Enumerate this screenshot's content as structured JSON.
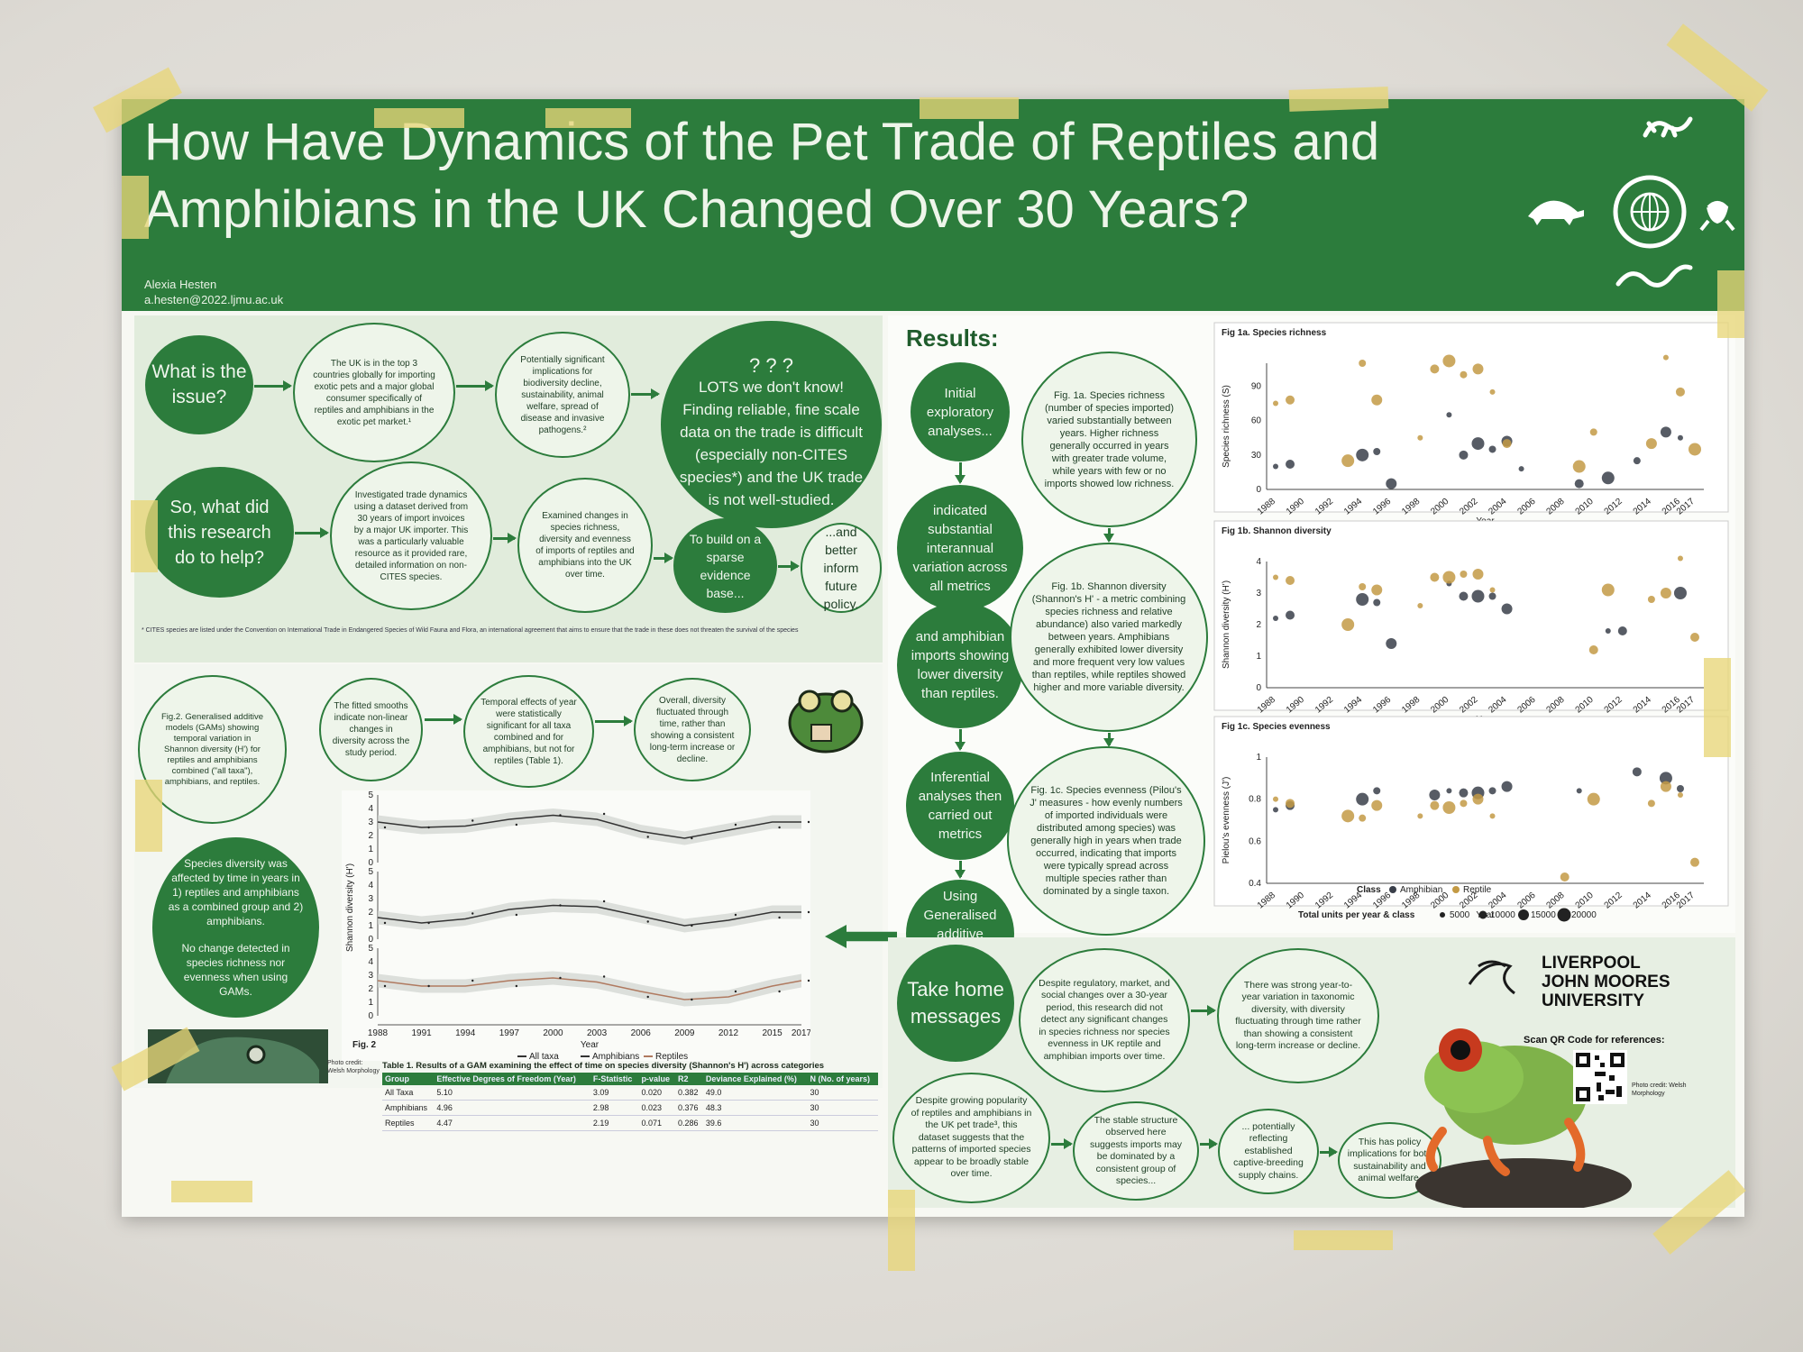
{
  "poster": {
    "title": "How Have Dynamics of the Pet Trade of Reptiles and Amphibians in the UK Changed Over 30 Years?",
    "author": "Alexia Hesten",
    "email": "a.hesten@2022.ljmu.ac.uk"
  },
  "issue": {
    "q1": "What is the issue?",
    "b1": "The UK is in the top 3 countries globally for importing exotic pets and a major global consumer specifically of reptiles and amphibians in the exotic pet market.¹",
    "b2": "Potentially significant implications for biodiversity decline, sustainability, animal welfare, spread of disease and invasive pathogens.²",
    "big": "LOTS we don't know! Finding reliable, fine scale data on the trade is difficult (especially non-CITES species*) and the UK trade is not well-studied.",
    "q2": "So, what did this research do to help?",
    "c1": "Investigated trade dynamics using a dataset derived from 30 years of import invoices by a major UK importer. This was a particularly valuable resource as it provided rare, detailed information on non-CITES species.",
    "c2": "Examined changes in species richness, diversity and evenness of imports of reptiles and amphibians into the UK over time.",
    "c3": "To build on a sparse evidence base...",
    "c4": "...and better inform future policy.",
    "footnote": "* CITES species are listed under the Convention on International Trade in Endangered Species of Wild Fauna and Flora, an international agreement that aims to ensure that the trade in these does not threaten the survival of the species"
  },
  "gam_section": {
    "g1": "Fig.2. Generalised additive models (GAMs) showing temporal variation in Shannon diversity (H') for reptiles and amphibians combined (\"all taxa\"), amphibians, and reptiles.",
    "g2": "The fitted smooths indicate non-linear changes in diversity across the study period.",
    "g3": "Temporal effects of year were statistically significant for all taxa combined and for amphibians, but not for reptiles (Table 1).",
    "g4": "Overall, diversity fluctuated through time, rather than showing a consistent long-term increase or decline.",
    "summary1": "Species diversity was affected by time in years in 1) reptiles and amphibians as a combined group and 2) amphibians.",
    "summary2": "No change detected in species richness nor evenness when using GAMs.",
    "photo_credit": "Photo credit: Welsh Morphology",
    "fig_label": "Fig. 2",
    "legend_all": "All taxa",
    "legend_amph": "Amphibians",
    "legend_rept": "Reptiles"
  },
  "table1": {
    "caption": "Table 1. Results of a GAM examining the effect of time on species diversity (Shannon's H') across categories",
    "headers": [
      "Group",
      "Effective Degrees of Freedom (Year)",
      "F-Statistic",
      "p-value",
      "R2",
      "Deviance Explained (%)",
      "N (No. of years)"
    ],
    "rows": [
      [
        "All Taxa",
        "5.10",
        "3.09",
        "0.020",
        "0.382",
        "49.0",
        "30"
      ],
      [
        "Amphibians",
        "4.96",
        "2.98",
        "0.023",
        "0.376",
        "48.3",
        "30"
      ],
      [
        "Reptiles",
        "4.47",
        "2.19",
        "0.071",
        "0.286",
        "39.6",
        "30"
      ]
    ]
  },
  "results": {
    "heading": "Results:",
    "f1": "Initial exploratory analyses...",
    "f2": "indicated substantial interannual variation across all metrics",
    "f3": "and amphibian imports showing lower diversity than reptiles.",
    "f4": "Inferential analyses then carried out metrics",
    "f5": "Using Generalised additive models (GAMs)",
    "d1": "Fig. 1a. Species richness (number of species imported) varied substantially between years. Higher richness generally occurred in years with greater trade volume, while years with few or no imports showed low richness.",
    "d2": "Fig. 1b. Shannon diversity (Shannon's H' - a metric combining species richness and relative abundance) also varied markedly between years. Amphibians generally exhibited lower diversity and more frequent very low values than reptiles, while reptiles showed higher and more variable diversity.",
    "d3": "Fig. 1c. Species evenness (Pilou's J' measures - how evenly numbers of imported individuals were distributed among species) was generally high in years when trade occurred, indicating that imports were typically spread across multiple species rather than dominated by a single taxon."
  },
  "fig1": {
    "a_title": "Fig 1a. Species richness",
    "a_ylabel": "Species richness (S)",
    "b_title": "Fig 1b. Shannon diversity",
    "b_ylabel": "Shannon diversity (H')",
    "c_title": "Fig 1c. Species evenness",
    "c_ylabel": "Pielou's evenness (J')",
    "xlabel": "Year",
    "legend_class": "Class",
    "legend_amph": "Amphibian",
    "legend_rept": "Reptile",
    "legend_units": "Total units per year & class",
    "size_labels": [
      "5000",
      "10000",
      "15000",
      "20000"
    ]
  },
  "chart_data": [
    {
      "type": "scatter",
      "title": "Fig 1a. Species richness",
      "xlabel": "Year",
      "ylabel": "Species richness (S)",
      "ylim": [
        0,
        110
      ],
      "x_ticks": [
        "1988",
        "1990",
        "1992",
        "1994",
        "1996",
        "1998",
        "2000",
        "2002",
        "2004",
        "2006",
        "2008",
        "2010",
        "2012",
        "2014",
        "2016",
        "2017"
      ],
      "y_ticks": [
        0,
        30,
        60,
        90
      ],
      "series": [
        {
          "name": "Amphibian",
          "x": [
            1988,
            1989,
            1994,
            1995,
            1996,
            2000,
            2001,
            2002,
            2003,
            2004,
            2005,
            2009,
            2011,
            2013,
            2015,
            2016
          ],
          "y": [
            20,
            22,
            30,
            33,
            5,
            65,
            30,
            40,
            35,
            42,
            18,
            5,
            10,
            25,
            50,
            45
          ]
        },
        {
          "name": "Reptile",
          "x": [
            1988,
            1989,
            1993,
            1994,
            1995,
            1998,
            1999,
            2000,
            2001,
            2002,
            2003,
            2004,
            2009,
            2010,
            2014,
            2015,
            2016,
            2017
          ],
          "y": [
            75,
            78,
            25,
            110,
            78,
            45,
            105,
            112,
            100,
            105,
            85,
            40,
            20,
            50,
            40,
            115,
            85,
            35
          ]
        }
      ]
    },
    {
      "type": "scatter",
      "title": "Fig 1b. Shannon diversity",
      "xlabel": "Year",
      "ylabel": "Shannon diversity (H')",
      "ylim": [
        0,
        4
      ],
      "x_ticks": [
        "1988",
        "1990",
        "1992",
        "1994",
        "1996",
        "1998",
        "2000",
        "2002",
        "2004",
        "2006",
        "2008",
        "2010",
        "2012",
        "2014",
        "2016",
        "2017"
      ],
      "y_ticks": [
        0,
        1,
        2,
        3,
        4
      ],
      "series": [
        {
          "name": "Amphibian",
          "x": [
            1988,
            1989,
            1994,
            1995,
            1996,
            2000,
            2001,
            2002,
            2003,
            2004,
            2011,
            2012,
            2016
          ],
          "y": [
            2.2,
            2.3,
            2.8,
            2.7,
            1.4,
            3.3,
            2.9,
            2.9,
            2.9,
            2.5,
            1.8,
            1.8,
            3.0
          ]
        },
        {
          "name": "Reptile",
          "x": [
            1988,
            1989,
            1993,
            1994,
            1995,
            1998,
            1999,
            2000,
            2001,
            2002,
            2003,
            2010,
            2011,
            2014,
            2015,
            2016,
            2017
          ],
          "y": [
            3.5,
            3.4,
            2.0,
            3.2,
            3.1,
            2.6,
            3.5,
            3.5,
            3.6,
            3.6,
            3.1,
            1.2,
            3.1,
            2.8,
            3.0,
            4.1,
            1.6
          ]
        }
      ]
    },
    {
      "type": "scatter",
      "title": "Fig 1c. Species evenness",
      "xlabel": "Year",
      "ylabel": "Pielou's evenness (J')",
      "ylim": [
        0.4,
        1.0
      ],
      "x_ticks": [
        "1988",
        "1990",
        "1992",
        "1994",
        "1996",
        "1998",
        "2000",
        "2002",
        "2004",
        "2006",
        "2008",
        "2010",
        "2012",
        "2014",
        "2016",
        "2017"
      ],
      "y_ticks": [
        0.4,
        0.6,
        0.8,
        1.0
      ],
      "series": [
        {
          "name": "Amphibian",
          "x": [
            1988,
            1989,
            1994,
            1995,
            1999,
            2000,
            2001,
            2002,
            2003,
            2004,
            2009,
            2013,
            2015,
            2016
          ],
          "y": [
            0.75,
            0.77,
            0.8,
            0.84,
            0.82,
            0.84,
            0.83,
            0.83,
            0.84,
            0.86,
            0.84,
            0.93,
            0.9,
            0.85
          ]
        },
        {
          "name": "Reptile",
          "x": [
            1988,
            1989,
            1993,
            1994,
            1995,
            1998,
            1999,
            2000,
            2001,
            2002,
            2003,
            2008,
            2010,
            2014,
            2015,
            2016,
            2017
          ],
          "y": [
            0.8,
            0.78,
            0.72,
            0.71,
            0.77,
            0.72,
            0.77,
            0.76,
            0.78,
            0.8,
            0.72,
            0.43,
            0.8,
            0.78,
            0.86,
            0.82,
            0.5
          ]
        }
      ]
    },
    {
      "type": "line",
      "title": "Fig. 2",
      "xlabel": "Year",
      "ylabel": "Shannon diversity (H')",
      "ylim": [
        0,
        5
      ],
      "x_ticks": [
        "1988",
        "1991",
        "1994",
        "1997",
        "2000",
        "2003",
        "2006",
        "2009",
        "2012",
        "2015",
        "2017"
      ],
      "y_ticks": [
        0,
        1,
        2,
        3,
        4,
        5
      ],
      "x": [
        1988,
        1991,
        1994,
        1997,
        2000,
        2003,
        2006,
        2009,
        2012,
        2015,
        2017
      ],
      "series": [
        {
          "name": "All taxa",
          "values": [
            3.0,
            2.6,
            2.7,
            3.2,
            3.5,
            3.2,
            2.3,
            1.8,
            2.4,
            3.0,
            3.0
          ]
        },
        {
          "name": "Amphibians",
          "values": [
            1.6,
            1.2,
            1.5,
            2.2,
            2.5,
            2.4,
            1.7,
            1.0,
            1.4,
            2.0,
            2.0
          ]
        },
        {
          "name": "Reptiles",
          "values": [
            2.6,
            2.2,
            2.2,
            2.6,
            2.8,
            2.5,
            1.8,
            1.2,
            1.4,
            2.2,
            2.6
          ]
        }
      ]
    }
  ],
  "takehome": {
    "heading": "Take home messages",
    "t1": "Despite regulatory, market, and social changes over a 30-year period, this research did not detect any significant changes in species richness nor species evenness in UK reptile and amphibian imports over time.",
    "t2": "There was strong year-to-year variation in taxonomic diversity, with diversity fluctuating through time rather than showing a consistent long-term increase or decline.",
    "t3": "Despite growing popularity of reptiles and amphibians in the UK pet trade³, this dataset suggests that the patterns of imported species appear to be broadly stable over time.",
    "t4": "The stable structure observed here suggests imports may be dominated by a consistent group of species...",
    "t5": "... potentially reflecting established captive-breeding supply chains.",
    "t6": "This has policy implications for both sustainability and animal welfare.",
    "uni1": "LIVERPOOL",
    "uni2": "JOHN MOORES",
    "uni3": "UNIVERSITY",
    "qr_text": "Scan QR Code for references:",
    "photo_credit": "Photo credit: Welsh Morphology"
  },
  "colors": {
    "green": "#2c7c3c",
    "amphibian": "#3a3f4a",
    "reptile": "#c39a45"
  }
}
